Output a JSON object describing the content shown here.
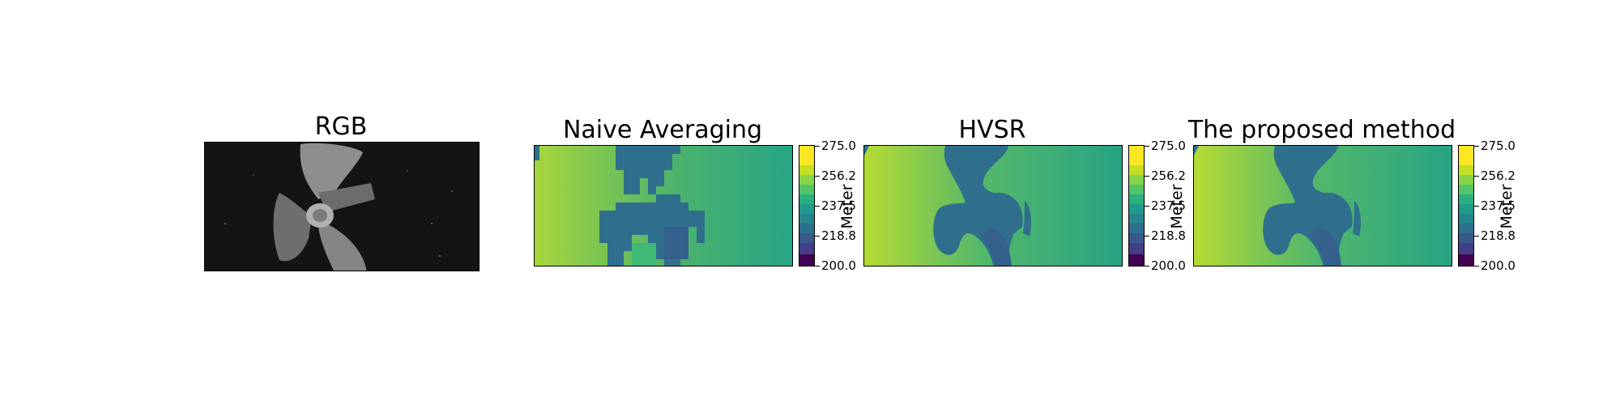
{
  "figure": {
    "rgb_title": "RGB"
  },
  "colormap": {
    "name": "viridis",
    "stops": [
      "#440154",
      "#3b528b",
      "#21918c",
      "#5ec962",
      "#fde725"
    ]
  },
  "chart_data": [
    {
      "type": "heatmap",
      "title": "Naive Averaging",
      "colorbar_label": "Meter",
      "vmin": 200.0,
      "vmax": 275.0,
      "ticks": [
        "275.0",
        "256.2",
        "237.5",
        "218.8",
        "200.0"
      ],
      "background_depth_left": 265,
      "background_depth_right": 250,
      "object_depth": 236
    },
    {
      "type": "heatmap",
      "title": "HVSR",
      "colorbar_label": "Meter",
      "vmin": 200.0,
      "vmax": 275.0,
      "ticks": [
        "275.0",
        "256.2",
        "237.5",
        "218.8",
        "200.0"
      ],
      "background_depth_left": 265,
      "background_depth_right": 250,
      "object_depth": 236
    },
    {
      "type": "heatmap",
      "title": "The proposed method",
      "colorbar_label": "Meter",
      "vmin": 200.0,
      "vmax": 275.0,
      "ticks": [
        "275.0",
        "256.2",
        "237.5",
        "218.8",
        "200.0"
      ],
      "background_depth_left": 265,
      "background_depth_right": 250,
      "object_depth": 236
    }
  ]
}
